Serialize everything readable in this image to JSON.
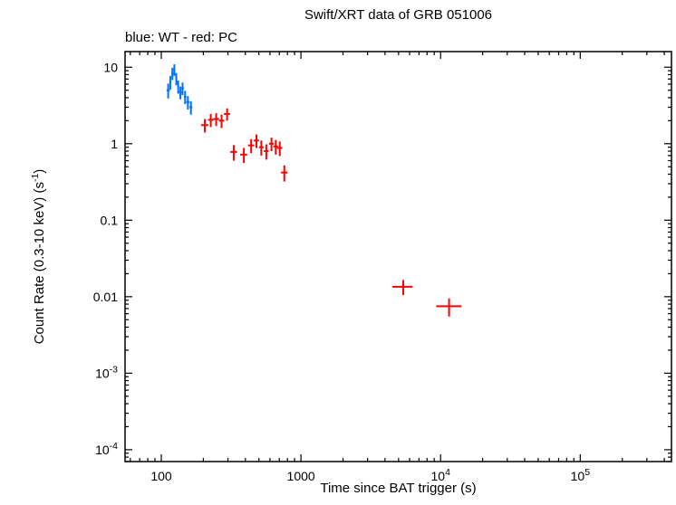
{
  "figure": {
    "title": "Swift/XRT data of GRB 051006",
    "subtitle": "blue: WT - red: PC",
    "xlabel": "Time since BAT trigger (s)",
    "ylabel": "Count Rate (0.3-10 keV) (s^{-1})"
  },
  "colors": {
    "wt_blue": "#0072ff",
    "pc_red": "#ff0000",
    "axis": "#000000",
    "background": "#ffffff"
  },
  "chart_data": {
    "type": "scatter",
    "title": "Swift/XRT data of GRB 051006",
    "subtitle": "blue: WT - red: PC",
    "xlabel": "Time since BAT trigger (s)",
    "ylabel": "Count Rate (0.3-10 keV) (s^{-1})",
    "xscale": "log",
    "yscale": "log",
    "xlim": [
      55,
      450000
    ],
    "ylim": [
      7e-05,
      16
    ],
    "grid": false,
    "x_ticks": [
      {
        "v": 100,
        "label": "100"
      },
      {
        "v": 1000,
        "label": "1000"
      },
      {
        "v": 10000,
        "label": "10^{4}"
      },
      {
        "v": 100000,
        "label": "10^{5}"
      }
    ],
    "y_ticks": [
      {
        "v": 10,
        "label": "10"
      },
      {
        "v": 1,
        "label": "1"
      },
      {
        "v": 0.1,
        "label": "0.1"
      },
      {
        "v": 0.01,
        "label": "0.01"
      },
      {
        "v": 0.001,
        "label": "10^{-3}"
      },
      {
        "v": 0.0001,
        "label": "10^{-4}"
      }
    ],
    "point_format": [
      "time_s",
      "terr_minus",
      "terr_plus",
      "rate",
      "rate_err"
    ],
    "marker": "error-bar-cross",
    "series": [
      {
        "name": "WT",
        "color": "#0072ff",
        "points": [
          [
            112,
            3,
            3,
            5.0,
            1.1
          ],
          [
            116,
            2,
            2,
            6.4,
            1.3
          ],
          [
            120,
            2,
            2,
            8.3,
            1.5
          ],
          [
            124,
            2,
            2,
            9.3,
            1.6
          ],
          [
            128,
            2,
            2,
            7.1,
            1.3
          ],
          [
            132,
            2,
            2,
            5.6,
            1.1
          ],
          [
            137,
            3,
            3,
            4.7,
            0.9
          ],
          [
            142,
            3,
            3,
            5.3,
            1.0
          ],
          [
            148,
            3,
            3,
            4.1,
            0.8
          ],
          [
            155,
            4,
            4,
            3.5,
            0.7
          ],
          [
            163,
            4,
            4,
            3.0,
            0.6
          ]
        ]
      },
      {
        "name": "PC",
        "color": "#ff0000",
        "points": [
          [
            205,
            12,
            12,
            1.75,
            0.35
          ],
          [
            226,
            10,
            10,
            2.05,
            0.4
          ],
          [
            247,
            12,
            12,
            2.1,
            0.4
          ],
          [
            270,
            12,
            12,
            2.0,
            0.4
          ],
          [
            296,
            15,
            15,
            2.45,
            0.45
          ],
          [
            330,
            18,
            18,
            0.78,
            0.18
          ],
          [
            390,
            22,
            22,
            0.72,
            0.16
          ],
          [
            440,
            22,
            22,
            0.95,
            0.2
          ],
          [
            480,
            20,
            20,
            1.1,
            0.22
          ],
          [
            520,
            20,
            20,
            0.9,
            0.2
          ],
          [
            565,
            22,
            22,
            0.8,
            0.18
          ],
          [
            615,
            25,
            25,
            1.0,
            0.2
          ],
          [
            660,
            25,
            25,
            0.92,
            0.2
          ],
          [
            705,
            30,
            30,
            0.88,
            0.19
          ],
          [
            760,
            40,
            40,
            0.42,
            0.1
          ],
          [
            5400,
            900,
            900,
            0.0135,
            0.003
          ],
          [
            11500,
            2200,
            2600,
            0.0075,
            0.002
          ]
        ]
      }
    ]
  }
}
